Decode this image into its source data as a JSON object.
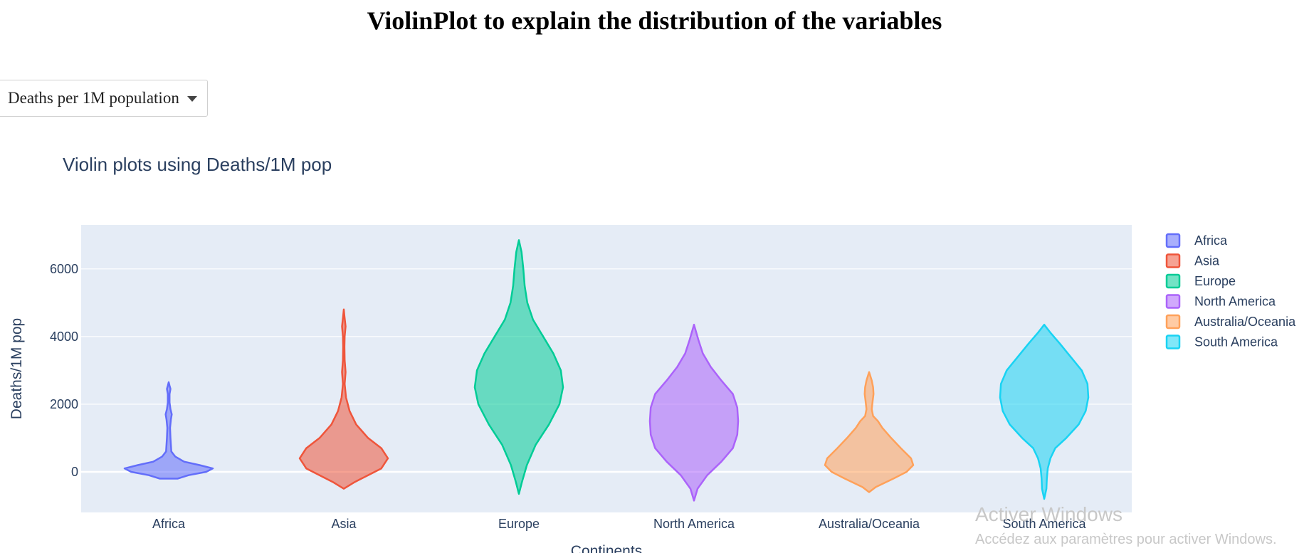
{
  "page": {
    "heading": "ViolinPlot to explain the distribution of the variables",
    "dropdown": {
      "selected": "Deaths per 1M population"
    }
  },
  "overlay": {
    "line1": "Activer Windows",
    "line2": "Accédez aux paramètres pour activer Windows."
  },
  "chart_data": {
    "type": "violin",
    "title": "Violin plots using Deaths/1M pop",
    "xlabel": "Continents",
    "ylabel": "Deaths/1M pop",
    "ylim": [
      -1200,
      7300
    ],
    "yticks": [
      0,
      2000,
      4000,
      6000
    ],
    "grid": true,
    "legend_position": "right",
    "categories": [
      "Africa",
      "Asia",
      "Europe",
      "North America",
      "Australia/Oceania",
      "South America"
    ],
    "series": [
      {
        "name": "Africa",
        "color": "#636efa",
        "min": -200,
        "max": 2650,
        "profile": [
          [
            -200,
            0.2
          ],
          [
            -100,
            0.45
          ],
          [
            0,
            0.85
          ],
          [
            100,
            1.0
          ],
          [
            200,
            0.7
          ],
          [
            300,
            0.35
          ],
          [
            450,
            0.15
          ],
          [
            600,
            0.06
          ],
          [
            800,
            0.05
          ],
          [
            1000,
            0.04
          ],
          [
            1300,
            0.03
          ],
          [
            1550,
            0.05
          ],
          [
            1700,
            0.07
          ],
          [
            1850,
            0.04
          ],
          [
            2050,
            0.02
          ],
          [
            2300,
            0.02
          ],
          [
            2450,
            0.04
          ],
          [
            2550,
            0.02
          ],
          [
            2650,
            0.0
          ]
        ]
      },
      {
        "name": "Asia",
        "color": "#ef553b",
        "min": -500,
        "max": 4800,
        "profile": [
          [
            -500,
            0.0
          ],
          [
            -300,
            0.25
          ],
          [
            -100,
            0.55
          ],
          [
            100,
            0.85
          ],
          [
            400,
            1.0
          ],
          [
            700,
            0.85
          ],
          [
            1000,
            0.55
          ],
          [
            1400,
            0.28
          ],
          [
            1800,
            0.13
          ],
          [
            2200,
            0.05
          ],
          [
            2600,
            0.02
          ],
          [
            2950,
            0.04
          ],
          [
            3300,
            0.02
          ],
          [
            3700,
            0.015
          ],
          [
            4000,
            0.02
          ],
          [
            4300,
            0.04
          ],
          [
            4600,
            0.015
          ],
          [
            4800,
            0.0
          ]
        ]
      },
      {
        "name": "Europe",
        "color": "#00cc96",
        "min": -650,
        "max": 6850,
        "profile": [
          [
            -650,
            0.0
          ],
          [
            -300,
            0.07
          ],
          [
            200,
            0.18
          ],
          [
            800,
            0.38
          ],
          [
            1400,
            0.68
          ],
          [
            2000,
            0.92
          ],
          [
            2500,
            1.0
          ],
          [
            3000,
            0.95
          ],
          [
            3500,
            0.78
          ],
          [
            4000,
            0.55
          ],
          [
            4500,
            0.32
          ],
          [
            5000,
            0.19
          ],
          [
            5500,
            0.13
          ],
          [
            6000,
            0.1
          ],
          [
            6500,
            0.06
          ],
          [
            6850,
            0.0
          ]
        ]
      },
      {
        "name": "North America",
        "color": "#ab63fa",
        "min": -850,
        "max": 4350,
        "profile": [
          [
            -850,
            0.0
          ],
          [
            -500,
            0.08
          ],
          [
            -100,
            0.3
          ],
          [
            300,
            0.62
          ],
          [
            700,
            0.88
          ],
          [
            1100,
            0.98
          ],
          [
            1500,
            1.0
          ],
          [
            1900,
            0.98
          ],
          [
            2300,
            0.88
          ],
          [
            2700,
            0.62
          ],
          [
            3100,
            0.38
          ],
          [
            3500,
            0.2
          ],
          [
            3900,
            0.1
          ],
          [
            4350,
            0.0
          ]
        ]
      },
      {
        "name": "Australia/Oceania",
        "color": "#ffa15a",
        "min": -600,
        "max": 2950,
        "profile": [
          [
            -600,
            0.0
          ],
          [
            -450,
            0.15
          ],
          [
            -200,
            0.55
          ],
          [
            0,
            0.85
          ],
          [
            200,
            1.0
          ],
          [
            400,
            0.95
          ],
          [
            700,
            0.72
          ],
          [
            1000,
            0.5
          ],
          [
            1300,
            0.3
          ],
          [
            1500,
            0.2
          ],
          [
            1650,
            0.09
          ],
          [
            1850,
            0.06
          ],
          [
            2100,
            0.08
          ],
          [
            2300,
            0.1
          ],
          [
            2500,
            0.09
          ],
          [
            2700,
            0.06
          ],
          [
            2950,
            0.0
          ]
        ]
      },
      {
        "name": "South America",
        "color": "#19d3f3",
        "min": -800,
        "max": 4350,
        "profile": [
          [
            -800,
            0.0
          ],
          [
            -500,
            0.05
          ],
          [
            -200,
            0.06
          ],
          [
            100,
            0.08
          ],
          [
            400,
            0.14
          ],
          [
            700,
            0.25
          ],
          [
            1000,
            0.5
          ],
          [
            1400,
            0.78
          ],
          [
            1800,
            0.94
          ],
          [
            2200,
            1.0
          ],
          [
            2600,
            0.98
          ],
          [
            3000,
            0.85
          ],
          [
            3400,
            0.6
          ],
          [
            3800,
            0.35
          ],
          [
            4100,
            0.15
          ],
          [
            4350,
            0.0
          ]
        ]
      }
    ]
  }
}
